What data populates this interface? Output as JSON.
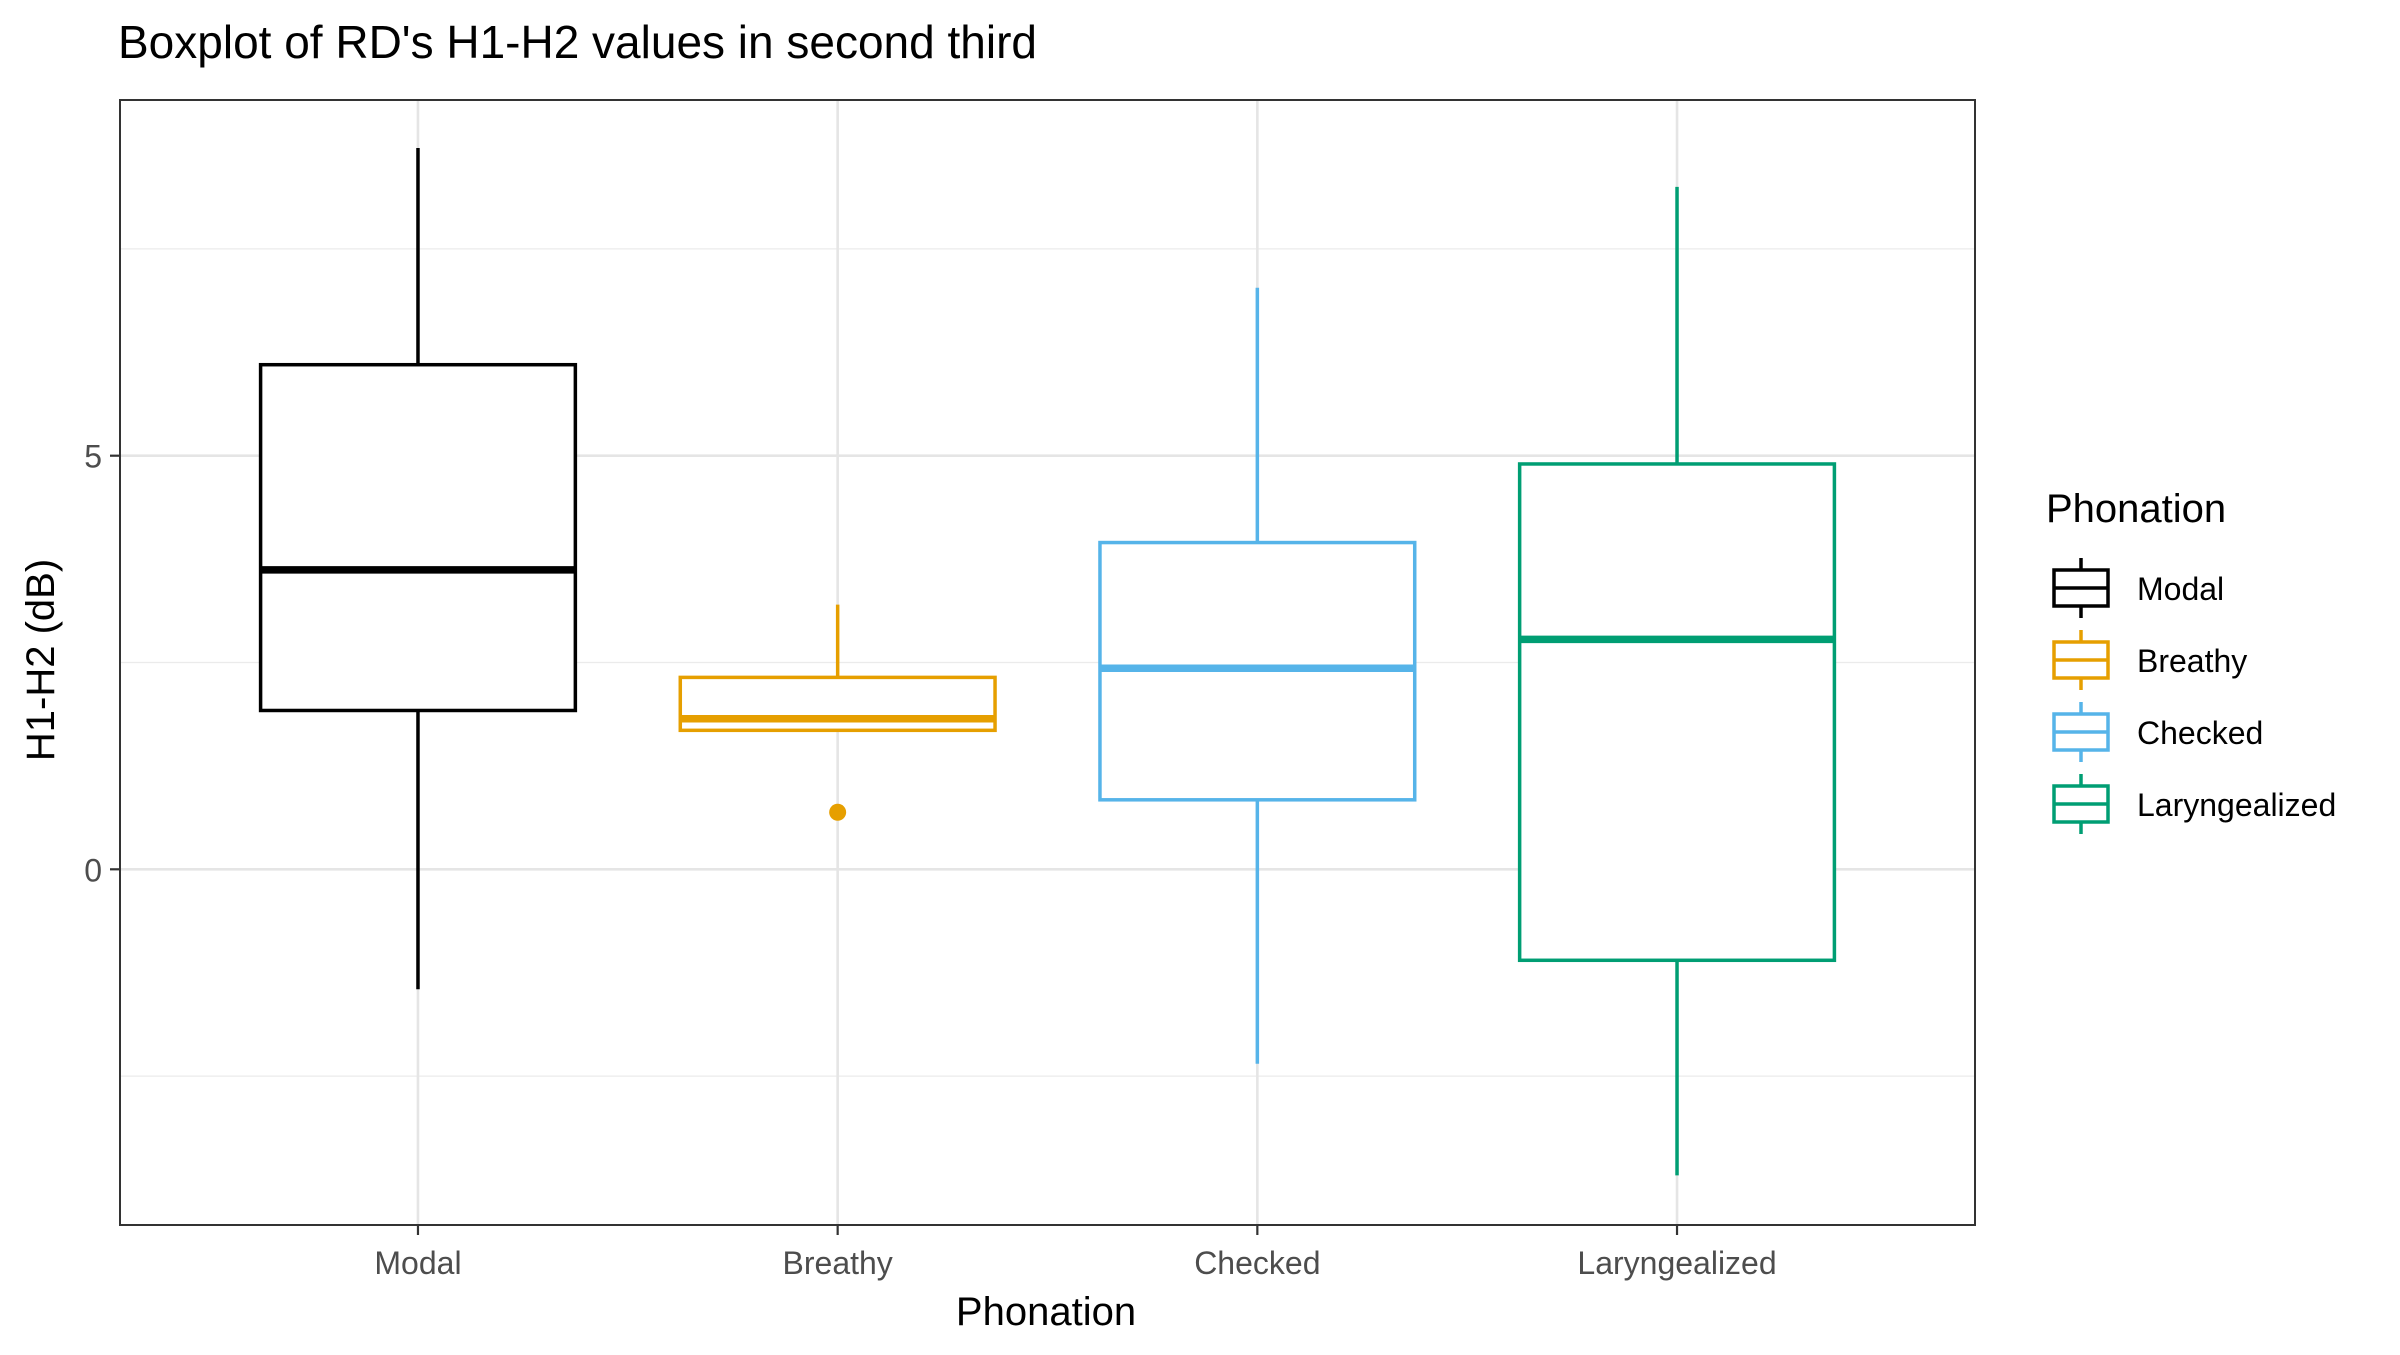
{
  "chart_data": {
    "type": "boxplot",
    "title": "Boxplot of RD's H1-H2 values in second third",
    "xlabel": "Phonation",
    "ylabel": "H1-H2 (dB)",
    "categories": [
      "Modal",
      "Breathy",
      "Checked",
      "Laryngealized"
    ],
    "ylim": [
      -4.3,
      9.3
    ],
    "yticks": [
      0,
      5
    ],
    "grid": true,
    "legend": {
      "title": "Phonation",
      "placement": "right",
      "entries": [
        "Modal",
        "Breathy",
        "Checked",
        "Laryngealized"
      ]
    },
    "series": [
      {
        "category": "Modal",
        "color": "#000000",
        "whisker_low": -1.45,
        "q1": 1.92,
        "median": 3.62,
        "q3": 6.1,
        "whisker_high": 8.72,
        "outliers": []
      },
      {
        "category": "Breathy",
        "color": "#E69F00",
        "whisker_low": 1.68,
        "q1": 1.68,
        "median": 1.82,
        "q3": 2.32,
        "whisker_high": 3.2,
        "outliers": [
          0.69
        ]
      },
      {
        "category": "Checked",
        "color": "#56B4E9",
        "whisker_low": -2.35,
        "q1": 0.84,
        "median": 2.43,
        "q3": 3.95,
        "whisker_high": 7.03,
        "outliers": []
      },
      {
        "category": "Laryngealized",
        "color": "#009E73",
        "whisker_low": -3.7,
        "q1": -1.1,
        "median": 2.78,
        "q3": 4.9,
        "whisker_high": 8.25,
        "outliers": []
      }
    ]
  }
}
